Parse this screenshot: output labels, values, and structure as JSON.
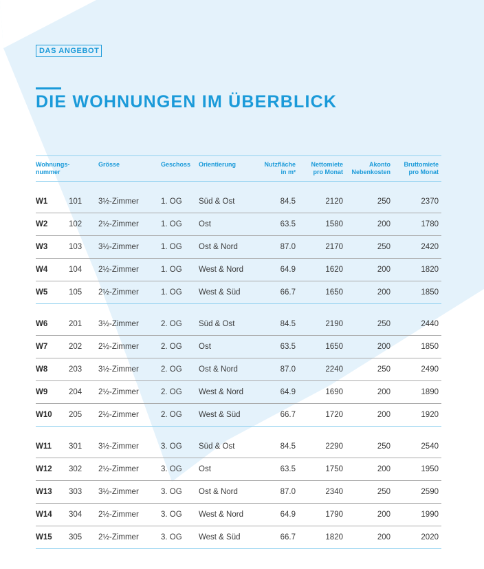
{
  "header": {
    "tag": "DAS ANGEBOT",
    "title": "DIE WOHNUNGEN IM ÜBERBLICK"
  },
  "columns": {
    "wohnung": "Wohnungs-\nnummer",
    "groesse": "Grösse",
    "geschoss": "Geschoss",
    "orientierung": "Orientierung",
    "nutzflaeche": "Nutzfläche\nin m²",
    "nettomiete": "Nettomiete\npro Monat",
    "akonto": "Akonto\nNebenkosten",
    "bruttomiete": "Bruttomiete\npro Monat"
  },
  "groups": [
    {
      "rows": [
        [
          "W1",
          "101",
          "3½-Zimmer",
          "1. OG",
          "Süd & Ost",
          "84.5",
          "2120",
          "250",
          "2370"
        ],
        [
          "W2",
          "102",
          "2½-Zimmer",
          "1. OG",
          "Ost",
          "63.5",
          "1580",
          "200",
          "1780"
        ],
        [
          "W3",
          "103",
          "3½-Zimmer",
          "1. OG",
          "Ost & Nord",
          "87.0",
          "2170",
          "250",
          "2420"
        ],
        [
          "W4",
          "104",
          "2½-Zimmer",
          "1. OG",
          "West & Nord",
          "64.9",
          "1620",
          "200",
          "1820"
        ],
        [
          "W5",
          "105",
          "2½-Zimmer",
          "1. OG",
          "West & Süd",
          "66.7",
          "1650",
          "200",
          "1850"
        ]
      ]
    },
    {
      "rows": [
        [
          "W6",
          "201",
          "3½-Zimmer",
          "2. OG",
          "Süd & Ost",
          "84.5",
          "2190",
          "250",
          "2440"
        ],
        [
          "W7",
          "202",
          "2½-Zimmer",
          "2. OG",
          "Ost",
          "63.5",
          "1650",
          "200",
          "1850"
        ],
        [
          "W8",
          "203",
          "3½-Zimmer",
          "2. OG",
          "Ost & Nord",
          "87.0",
          "2240",
          "250",
          "2490"
        ],
        [
          "W9",
          "204",
          "2½-Zimmer",
          "2. OG",
          "West & Nord",
          "64.9",
          "1690",
          "200",
          "1890"
        ],
        [
          "W10",
          "205",
          "2½-Zimmer",
          "2. OG",
          "West & Süd",
          "66.7",
          "1720",
          "200",
          "1920"
        ]
      ]
    },
    {
      "rows": [
        [
          "W11",
          "301",
          "3½-Zimmer",
          "3. OG",
          "Süd & Ost",
          "84.5",
          "2290",
          "250",
          "2540"
        ],
        [
          "W12",
          "302",
          "2½-Zimmer",
          "3. OG",
          "Ost",
          "63.5",
          "1750",
          "200",
          "1950"
        ],
        [
          "W13",
          "303",
          "3½-Zimmer",
          "3. OG",
          "Ost & Nord",
          "87.0",
          "2340",
          "250",
          "2590"
        ],
        [
          "W14",
          "304",
          "2½-Zimmer",
          "3. OG",
          "West & Nord",
          "64.9",
          "1790",
          "200",
          "1990"
        ],
        [
          "W15",
          "305",
          "2½-Zimmer",
          "3. OG",
          "West & Süd",
          "66.7",
          "1820",
          "200",
          "2020"
        ]
      ]
    }
  ],
  "colors": {
    "accent": "#1a9ad9",
    "background_shape": "#e4f2fb"
  }
}
